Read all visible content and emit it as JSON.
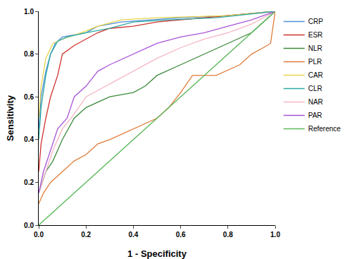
{
  "chart_data": {
    "type": "line",
    "x_label": "1 - Specificity",
    "y_label": "Sensitivity",
    "xlim": [
      0,
      1
    ],
    "ylim": [
      0,
      1
    ],
    "xticks": [
      {
        "value": 0,
        "label": "0.0"
      },
      0.2,
      0.4,
      0.6,
      0.8,
      {
        "value": 1,
        "label": "1.0"
      }
    ],
    "yticks": [
      {
        "value": 0,
        "label": "0.0"
      },
      0.2,
      0.4,
      0.6,
      0.8,
      {
        "value": 1,
        "label": "1.0"
      }
    ],
    "grid": false,
    "legend": "right",
    "series": [
      {
        "name": "CRP",
        "color": "#4f8fd8",
        "x": [
          0,
          0.01,
          0.03,
          0.05,
          0.07,
          0.1,
          0.2,
          0.25,
          0.35,
          0.6,
          0.8,
          1
        ],
        "values": [
          0.45,
          0.6,
          0.72,
          0.8,
          0.85,
          0.88,
          0.9,
          0.93,
          0.95,
          0.97,
          0.98,
          1
        ]
      },
      {
        "name": "ESR",
        "color": "#d0312d",
        "x": [
          0,
          0.01,
          0.03,
          0.05,
          0.08,
          0.1,
          0.15,
          0.2,
          0.25,
          0.3,
          0.4,
          0.5,
          0.7,
          0.9,
          1
        ],
        "values": [
          0.25,
          0.38,
          0.5,
          0.6,
          0.7,
          0.8,
          0.84,
          0.87,
          0.9,
          0.92,
          0.93,
          0.95,
          0.97,
          0.99,
          1
        ]
      },
      {
        "name": "NLR",
        "color": "#3b8a3b",
        "x": [
          0,
          0.03,
          0.06,
          0.1,
          0.15,
          0.2,
          0.3,
          0.4,
          0.45,
          0.5,
          0.6,
          0.7,
          0.8,
          0.9,
          1
        ],
        "values": [
          0.15,
          0.25,
          0.3,
          0.4,
          0.5,
          0.55,
          0.6,
          0.62,
          0.65,
          0.7,
          0.75,
          0.8,
          0.85,
          0.9,
          1
        ]
      },
      {
        "name": "PLR",
        "color": "#e07b39",
        "x": [
          0,
          0.02,
          0.05,
          0.1,
          0.15,
          0.2,
          0.25,
          0.3,
          0.4,
          0.5,
          0.55,
          0.6,
          0.65,
          0.75,
          0.85,
          0.9,
          0.95,
          0.98,
          1
        ],
        "values": [
          0.1,
          0.15,
          0.2,
          0.25,
          0.3,
          0.33,
          0.38,
          0.4,
          0.45,
          0.5,
          0.55,
          0.62,
          0.7,
          0.7,
          0.75,
          0.8,
          0.83,
          0.85,
          1
        ]
      },
      {
        "name": "CAR",
        "color": "#e8d44d",
        "x": [
          0,
          0.01,
          0.03,
          0.06,
          0.1,
          0.18,
          0.25,
          0.35,
          0.5,
          0.8,
          1
        ],
        "values": [
          0.5,
          0.65,
          0.78,
          0.85,
          0.87,
          0.9,
          0.93,
          0.96,
          0.97,
          0.98,
          1
        ]
      },
      {
        "name": "CLR",
        "color": "#2ca9a1",
        "x": [
          0,
          0.01,
          0.03,
          0.05,
          0.08,
          0.12,
          0.2,
          0.3,
          0.4,
          0.55,
          0.75,
          1
        ],
        "values": [
          0.4,
          0.55,
          0.7,
          0.8,
          0.86,
          0.88,
          0.9,
          0.92,
          0.95,
          0.96,
          0.97,
          1
        ]
      },
      {
        "name": "NAR",
        "color": "#f4b6c2",
        "x": [
          0,
          0.03,
          0.06,
          0.1,
          0.15,
          0.2,
          0.3,
          0.4,
          0.5,
          0.6,
          0.7,
          0.8,
          0.9,
          1
        ],
        "values": [
          0.15,
          0.25,
          0.35,
          0.45,
          0.52,
          0.6,
          0.66,
          0.72,
          0.78,
          0.83,
          0.87,
          0.9,
          0.94,
          1
        ]
      },
      {
        "name": "PAR",
        "color": "#a855d8",
        "x": [
          0,
          0.02,
          0.05,
          0.08,
          0.12,
          0.15,
          0.2,
          0.25,
          0.3,
          0.4,
          0.5,
          0.6,
          0.7,
          0.8,
          0.9,
          1
        ],
        "values": [
          0.15,
          0.25,
          0.35,
          0.45,
          0.5,
          0.6,
          0.65,
          0.72,
          0.75,
          0.8,
          0.85,
          0.88,
          0.9,
          0.93,
          0.96,
          1
        ]
      },
      {
        "name": "Reference",
        "color": "#5cb85c",
        "x": [
          0,
          1
        ],
        "values": [
          0,
          1
        ]
      }
    ]
  }
}
